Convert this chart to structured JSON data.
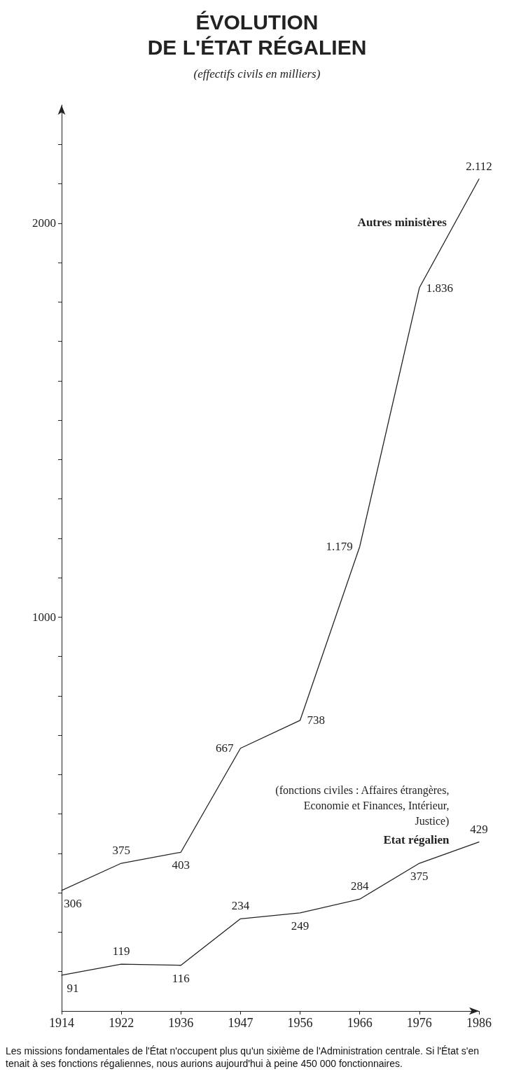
{
  "chart_data": {
    "type": "line",
    "title": "ÉVOLUTION\nDE L'ÉTAT RÉGALIEN",
    "subtitle": "(effectifs civils en milliers)",
    "categories": [
      "1914",
      "1922",
      "1936",
      "1947",
      "1956",
      "1966",
      "1976",
      "1986"
    ],
    "series": [
      {
        "name": "Autres ministères",
        "color": "#222222",
        "values": [
          306,
          375,
          403,
          667,
          738,
          1179,
          1836,
          2112
        ],
        "value_labels": [
          "306",
          "375",
          "403",
          "667",
          "738",
          "1.179",
          "1.836",
          "2.112"
        ]
      },
      {
        "name": "Etat régalien",
        "color": "#222222",
        "values": [
          91,
          119,
          116,
          234,
          249,
          284,
          375,
          429
        ],
        "value_labels": [
          "91",
          "119",
          "116",
          "234",
          "249",
          "284",
          "375",
          "429"
        ]
      }
    ],
    "annotations": [
      "(fonctions civiles : Affaires étrangères,\nEconomie et Finances, Intérieur,\nJustice)",
      "Les missions fondamentales de l'État n'occupent plus qu'un sixième de l'Administration centrale. Si l'État s'en tenait à ses fonctions régaliennes, nous aurions aujourd'hui à peine 450 000 fonctionnaires."
    ],
    "ylim": [
      0,
      2300
    ],
    "yticks": [
      {
        "value": 100,
        "label": null
      },
      {
        "value": 200,
        "label": null
      },
      {
        "value": 300,
        "label": null
      },
      {
        "value": 400,
        "label": null
      },
      {
        "value": 500,
        "label": null
      },
      {
        "value": 600,
        "label": null
      },
      {
        "value": 700,
        "label": null
      },
      {
        "value": 800,
        "label": null
      },
      {
        "value": 900,
        "label": null
      },
      1000,
      {
        "value": 1100,
        "label": null
      },
      {
        "value": 1200,
        "label": null
      },
      {
        "value": 1300,
        "label": null
      },
      {
        "value": 1400,
        "label": null
      },
      {
        "value": 1500,
        "label": null
      },
      {
        "value": 1600,
        "label": null
      },
      {
        "value": 1700,
        "label": null
      },
      {
        "value": 1800,
        "label": null
      },
      {
        "value": 1900,
        "label": null
      },
      2000,
      {
        "value": 2100,
        "label": null
      },
      {
        "value": 2200,
        "label": null
      }
    ],
    "grid": false,
    "legend": false,
    "marker": "none",
    "line_style": "solid"
  }
}
